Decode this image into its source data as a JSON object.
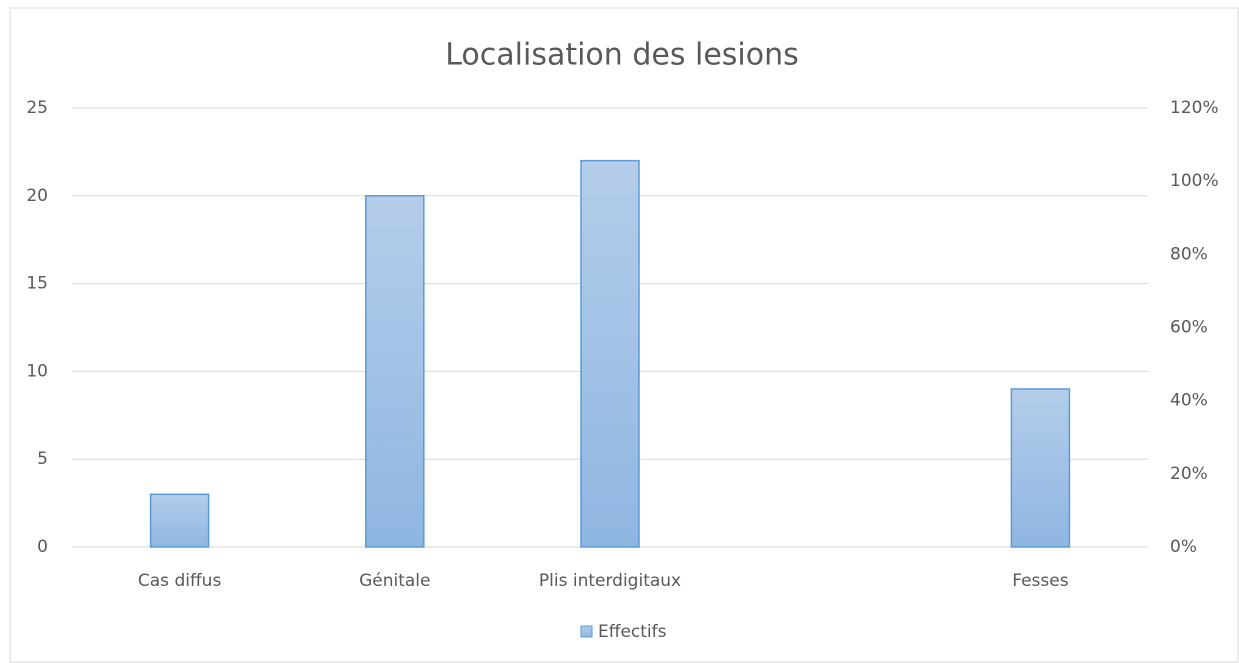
{
  "chart_data": {
    "type": "bar",
    "title": "Localisation des lesions",
    "categories": [
      "Cas diffus",
      "Génitale",
      "Plis interdigitaux",
      null,
      "Fesses"
    ],
    "series": [
      {
        "name": "Effectifs",
        "color": "#5b9bd5",
        "values": [
          3,
          20,
          22,
          null,
          9
        ]
      }
    ],
    "ylim": [
      0,
      25
    ],
    "yticks": [
      0,
      5,
      10,
      15,
      20,
      25
    ],
    "y2lim": [
      0,
      120
    ],
    "y2ticks": [
      {
        "value": 0,
        "label": "0%"
      },
      {
        "value": 20,
        "label": "20%"
      },
      {
        "value": 40,
        "label": "40%"
      },
      {
        "value": 60,
        "label": "60%"
      },
      {
        "value": 80,
        "label": "80%"
      },
      {
        "value": 100,
        "label": "100%"
      },
      {
        "value": 120,
        "label": "120%"
      }
    ],
    "grid": true,
    "legend": "bottom"
  }
}
